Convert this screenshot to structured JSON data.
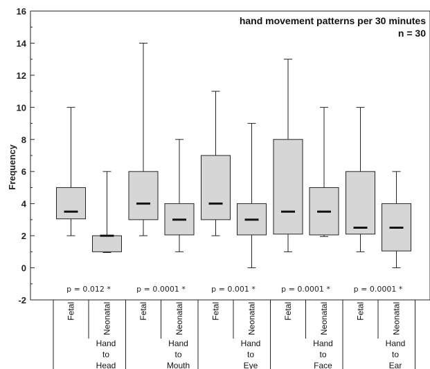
{
  "chart_data": {
    "type": "box",
    "title": "hand movement patterns per 30 minutes",
    "subtitle": "n = 30",
    "ylabel": "Frequency",
    "ylim": [
      -2,
      16
    ],
    "yticks": [
      -2,
      0,
      2,
      4,
      6,
      8,
      10,
      12,
      14,
      16
    ],
    "grid": false,
    "groups": [
      {
        "name": [
          "Hand",
          "to",
          "Head"
        ],
        "p_value": "p = 0.012 *",
        "boxes": [
          {
            "label": "Fetal",
            "min": 2,
            "q1": 3.05,
            "median": 3.5,
            "q3": 5,
            "max": 10
          },
          {
            "label": "Neonatal",
            "min": 0.95,
            "q1": 1,
            "median": 2,
            "q3": 2,
            "max": 6
          }
        ]
      },
      {
        "name": [
          "Hand",
          "to",
          "Mouth"
        ],
        "p_value": "p = 0.0001 *",
        "boxes": [
          {
            "label": "Fetal",
            "min": 2,
            "q1": 3,
            "median": 4,
            "q3": 6,
            "max": 14
          },
          {
            "label": "Neonatal",
            "min": 1,
            "q1": 2.05,
            "median": 3,
            "q3": 4,
            "max": 8
          }
        ]
      },
      {
        "name": [
          "Hand",
          "to",
          "Eye"
        ],
        "p_value": "p = 0.001 *",
        "boxes": [
          {
            "label": "Fetal",
            "min": 2,
            "q1": 3,
            "median": 4,
            "q3": 7,
            "max": 11
          },
          {
            "label": "Neonatal",
            "min": 0,
            "q1": 2.05,
            "median": 3,
            "q3": 4,
            "max": 9
          }
        ]
      },
      {
        "name": [
          "Hand",
          "to",
          "Face"
        ],
        "p_value": "p = 0.0001 *",
        "boxes": [
          {
            "label": "Fetal",
            "min": 1,
            "q1": 2.1,
            "median": 3.5,
            "q3": 8,
            "max": 13
          },
          {
            "label": "Neonatal",
            "min": 1.95,
            "q1": 2.05,
            "median": 3.5,
            "q3": 5,
            "max": 10
          }
        ]
      },
      {
        "name": [
          "Hand",
          "to",
          "Ear"
        ],
        "p_value": "p = 0.0001 *",
        "boxes": [
          {
            "label": "Fetal",
            "min": 1,
            "q1": 2.1,
            "median": 2.5,
            "q3": 6,
            "max": 10
          },
          {
            "label": "Neonatal",
            "min": 0,
            "q1": 1.05,
            "median": 2.5,
            "q3": 4,
            "max": 6
          }
        ]
      }
    ]
  }
}
